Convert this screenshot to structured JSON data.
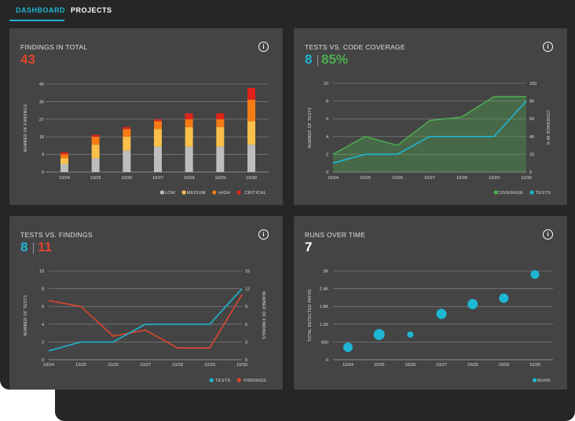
{
  "tabs": [
    {
      "label": "DASHBOARD",
      "active": true
    },
    {
      "label": "PROJECTS",
      "active": false
    }
  ],
  "colors": {
    "accent": "#1fb6d4",
    "red": "#e0452f",
    "green": "#4caf50",
    "low": "#bdbdbd",
    "medium": "#fbc04a",
    "high": "#f57c14",
    "critical": "#e0231a"
  },
  "cards": {
    "findings": {
      "title": "FINDINGS IN TOTAL",
      "value": "43",
      "info_icon": "info-icon",
      "chart_data": {
        "type": "bar",
        "categories": [
          "10/24",
          "10/25",
          "10/26",
          "10/27",
          "10/28",
          "10/29",
          "10/30"
        ],
        "series": [
          {
            "name": "LOW",
            "values": [
              4,
              7,
              11,
              13,
              13,
              13,
              14
            ]
          },
          {
            "name": "MEDIUM",
            "values": [
              3,
              7,
              7,
              9,
              10,
              10,
              12
            ]
          },
          {
            "name": "HIGH",
            "values": [
              2,
              4,
              4,
              4,
              4,
              4,
              11
            ]
          },
          {
            "name": "CRITICAL",
            "values": [
              1,
              1,
              1,
              1,
              3,
              3,
              6
            ]
          }
        ],
        "ylabel": "NUMBER OF FINDINGS",
        "yticks": [
          "45",
          "36",
          "27",
          "18",
          "9",
          "0"
        ],
        "ylim": [
          0,
          45
        ],
        "legend": "bottom-right"
      }
    },
    "coverage": {
      "title": "TESTS VS. CODE COVERAGE",
      "value_tests": "8",
      "value_coverage": "85%",
      "info_icon": "info-icon",
      "chart_data": {
        "type": "line",
        "x": [
          "10/24",
          "10/25",
          "10/26",
          "10/27",
          "10/28",
          "10/29",
          "10/30"
        ],
        "series": [
          {
            "name": "COVERAGE",
            "axis": "right",
            "values": [
              20,
              40,
              30,
              58,
              62,
              85,
              85
            ]
          },
          {
            "name": "TESTS",
            "axis": "left",
            "values": [
              1,
              2,
              2,
              4,
              4,
              4,
              8
            ]
          }
        ],
        "ylabel_left": "NUMBER OF TESTS",
        "ylabel_right": "COVERAGE IN %",
        "yticks_left": [
          "10",
          "8",
          "6",
          "4",
          "2",
          "0"
        ],
        "yticks_right": [
          "100",
          "80",
          "60",
          "40",
          "20",
          "0"
        ],
        "ylim_left": [
          0,
          10
        ],
        "ylim_right": [
          0,
          100
        ],
        "legend": "bottom-right"
      }
    },
    "testsfindings": {
      "title": "TESTS VS. FINDINGS",
      "value_tests": "8",
      "value_findings": "11",
      "info_icon": "info-icon",
      "chart_data": {
        "type": "line",
        "x": [
          "10/24",
          "10/25",
          "10/26",
          "10/27",
          "10/28",
          "10/29",
          "10/30"
        ],
        "series": [
          {
            "name": "TESTS",
            "axis": "left",
            "values": [
              1,
              2,
              2,
              4,
              4,
              4,
              8
            ]
          },
          {
            "name": "FINDINGS",
            "axis": "right",
            "values": [
              10,
              9,
              4,
              5,
              2,
              2,
              11
            ]
          }
        ],
        "ylabel_left": "NUMBER OF TESTS",
        "ylabel_right": "NUMBER OF FINDINGS",
        "yticks_left": [
          "10",
          "8",
          "6",
          "4",
          "2",
          "0"
        ],
        "yticks_right": [
          "15",
          "12",
          "9",
          "6",
          "3",
          "0"
        ],
        "ylim_left": [
          0,
          10
        ],
        "ylim_right": [
          0,
          15
        ],
        "legend": "bottom-right"
      }
    },
    "runs": {
      "title": "RUNS OVER TIME",
      "value": "7",
      "info_icon": "info-icon",
      "chart_data": {
        "type": "scatter",
        "x": [
          "10/24",
          "10/25",
          "10/26",
          "10/27",
          "10/28",
          "10/29",
          "10/30"
        ],
        "series": [
          {
            "name": "RUNS",
            "values": [
              420,
              850,
              850,
              1550,
              1880,
              2080,
              2880
            ],
            "sizes": [
              6,
              7,
              4,
              6.5,
              6.5,
              6,
              5.5
            ]
          }
        ],
        "ylabel": "TOTAL DETECTED PATHS",
        "yticks": [
          "3K",
          "2.4K",
          "1.8K",
          "1.2K",
          "600",
          "0"
        ],
        "ylim": [
          0,
          3000
        ],
        "legend": "bottom-right"
      }
    }
  }
}
